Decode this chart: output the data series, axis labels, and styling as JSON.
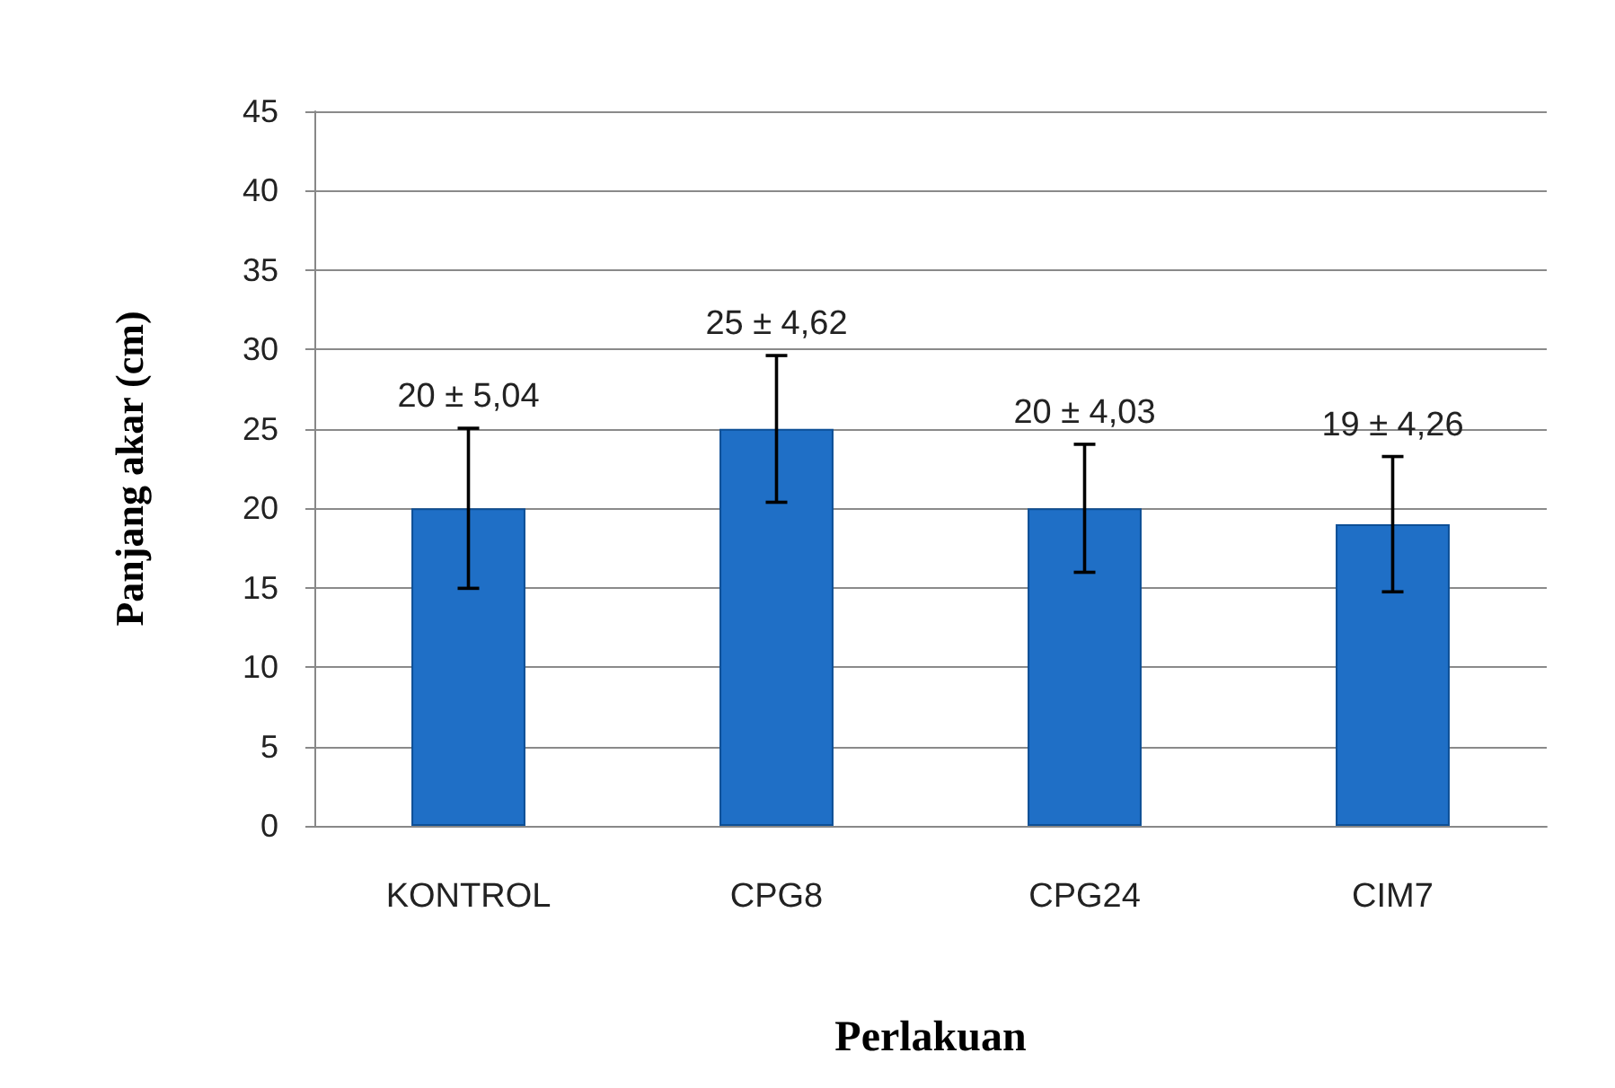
{
  "chart_data": {
    "type": "bar",
    "xlabel": "Perlakuan",
    "ylabel": "Panjang akar (cm)",
    "categories": [
      "KONTROL",
      "CPG8",
      "CPG24",
      "CIM7"
    ],
    "values": [
      20,
      25,
      20,
      19
    ],
    "errors": [
      5.04,
      4.62,
      4.03,
      4.26
    ],
    "value_labels": [
      "20 ± 5,04",
      "25 ± 4,62",
      "20 ± 4,03",
      "19 ± 4,26"
    ],
    "color": "#1f6fc6",
    "ylim": [
      0,
      45
    ],
    "yticks": [
      0,
      5,
      10,
      15,
      20,
      25,
      30,
      35,
      40,
      45
    ],
    "grid": "y"
  }
}
